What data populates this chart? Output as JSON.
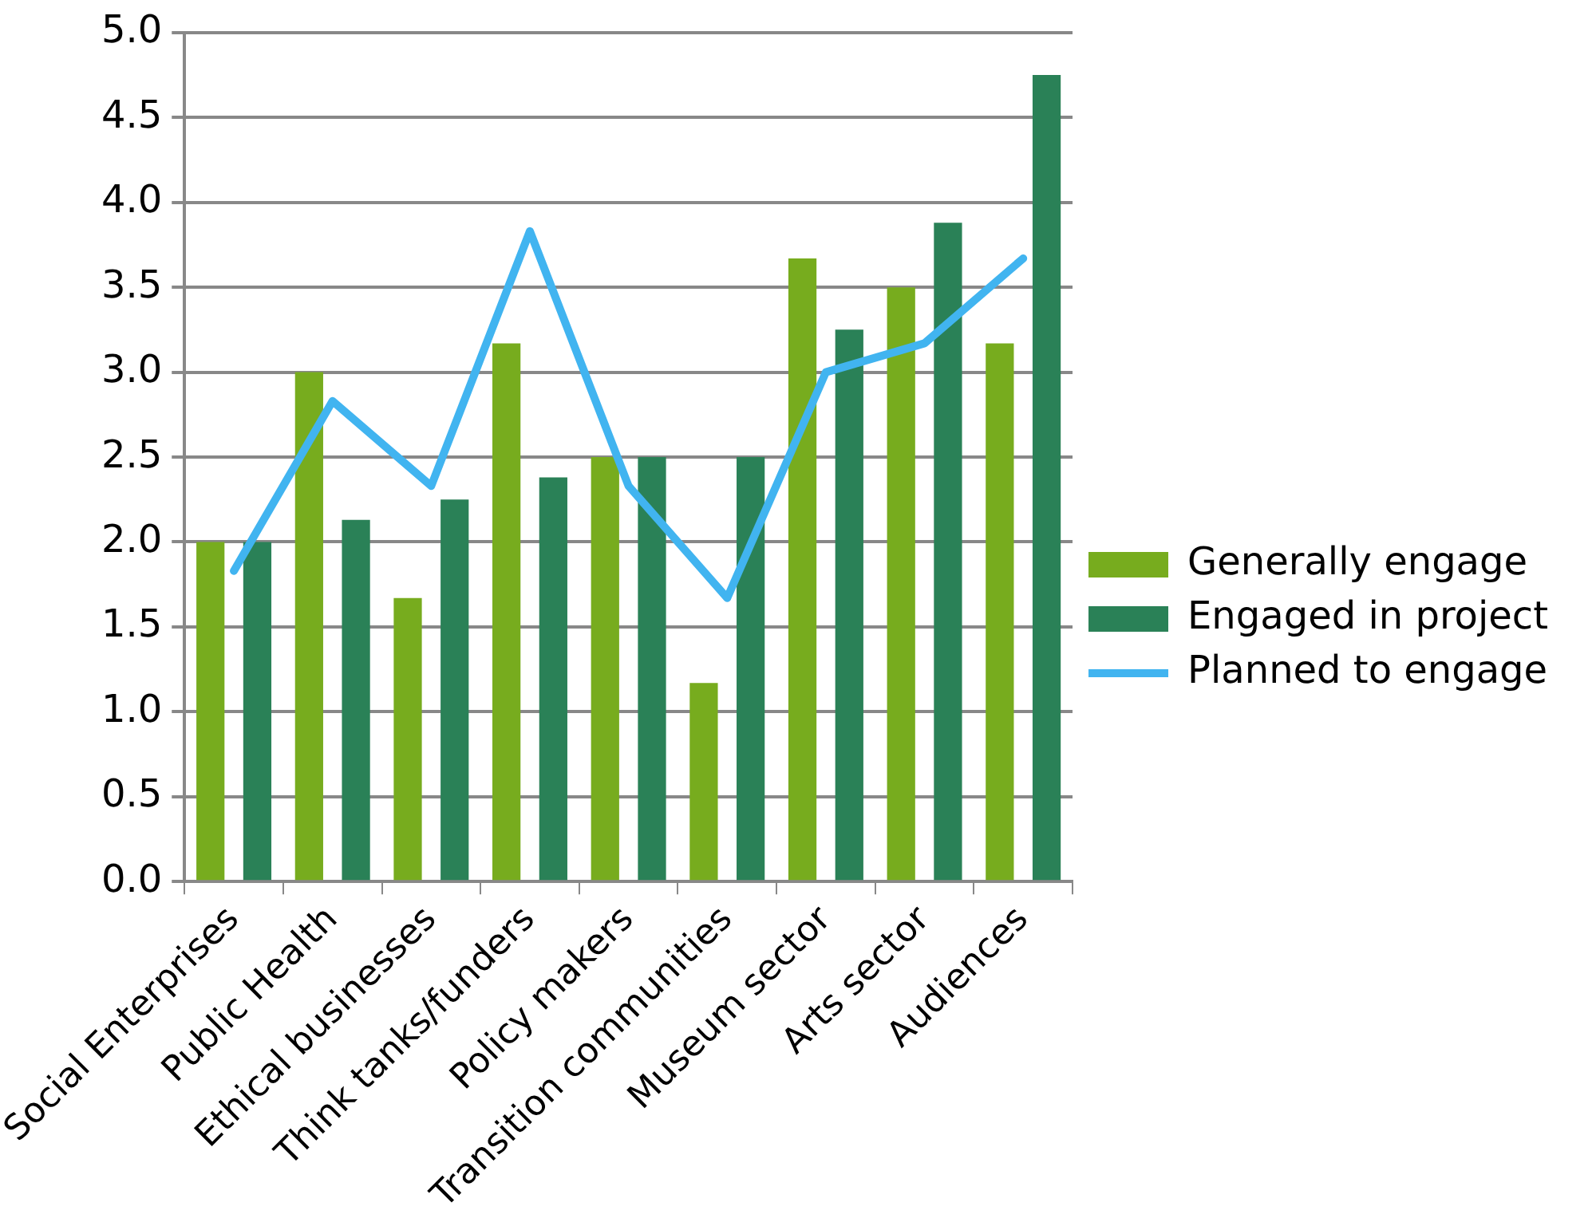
{
  "chart_data": {
    "type": "bar",
    "categories": [
      "Social Enterprises",
      "Public Health",
      "Ethical businesses",
      "Think tanks/funders",
      "Policy makers",
      "Transition communities",
      "Museum sector",
      "Arts sector",
      "Audiences"
    ],
    "series": [
      {
        "name": "Generally engage",
        "color": "#77ac1e",
        "values": [
          2.0,
          3.0,
          1.67,
          3.17,
          2.5,
          1.17,
          3.67,
          3.5,
          3.17
        ]
      },
      {
        "name": "Engaged in project",
        "color": "#2a8157",
        "values": [
          2.0,
          2.13,
          2.25,
          2.38,
          2.5,
          2.5,
          3.25,
          3.88,
          4.75
        ]
      },
      {
        "name": "Planned to engage",
        "type": "line",
        "color": "#41b4f0",
        "values": [
          1.83,
          2.83,
          2.33,
          3.83,
          2.33,
          1.67,
          3.0,
          3.17,
          3.67
        ]
      }
    ],
    "ylim": [
      0,
      5
    ],
    "yticks": [
      {
        "value": 0,
        "label": "0.0"
      },
      {
        "value": 0.5,
        "label": "0.5"
      },
      {
        "value": 1,
        "label": "1.0"
      },
      {
        "value": 1.5,
        "label": "1.5"
      },
      {
        "value": 2,
        "label": "2.0"
      },
      {
        "value": 2.5,
        "label": "2.5"
      },
      {
        "value": 3,
        "label": "3.0"
      },
      {
        "value": 3.5,
        "label": "3.5"
      },
      {
        "value": 4,
        "label": "4.0"
      },
      {
        "value": 4.5,
        "label": "4.5"
      },
      {
        "value": 5,
        "label": "5.0"
      }
    ],
    "grid": "y",
    "legend": "right",
    "marker": "none"
  }
}
